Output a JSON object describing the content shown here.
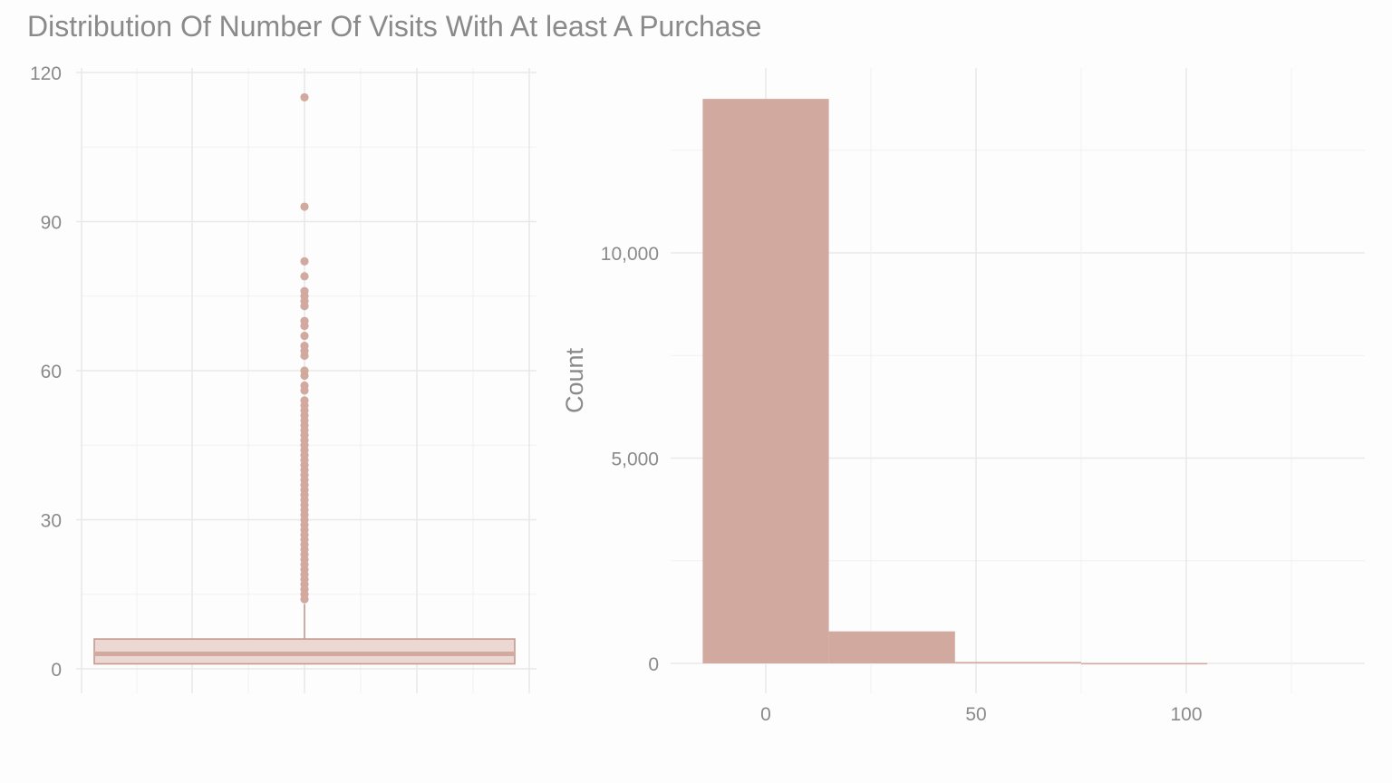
{
  "title": "Distribution Of Number Of Visits With At least A Purchase",
  "colors": {
    "fill": "#d2a99e",
    "box_fill": "#ecd8d2",
    "box_stroke": "#c79a8e",
    "text": "#8a8a8a",
    "grid_major": "#e9e9e9",
    "grid_minor": "#f1f1f1",
    "background": "#fdfdfd"
  },
  "chart_data": [
    {
      "type": "box",
      "name": "boxplot",
      "xlabel": "",
      "ylabel": "",
      "ylim": [
        -5,
        120
      ],
      "yticks": [
        0,
        30,
        60,
        90,
        120
      ],
      "ytick_labels": [
        "0",
        "30",
        "60",
        "90",
        "120"
      ],
      "grid": true,
      "stats": {
        "q1": 1,
        "median": 3,
        "q3": 6,
        "whisker_low": 1,
        "whisker_high": 13
      },
      "outliers": [
        14,
        15,
        16,
        17,
        18,
        19,
        20,
        21,
        22,
        23,
        24,
        25,
        26,
        27,
        28,
        29,
        30,
        31,
        32,
        33,
        34,
        35,
        36,
        37,
        38,
        39,
        40,
        41,
        42,
        43,
        44,
        45,
        46,
        47,
        48,
        49,
        50,
        51,
        52,
        53,
        54,
        56,
        57,
        59,
        60,
        63,
        64,
        65,
        67,
        69,
        70,
        73,
        74,
        75,
        76,
        79,
        82,
        93,
        115
      ]
    },
    {
      "type": "bar",
      "name": "histogram",
      "xlabel": "",
      "ylabel": "Count",
      "xlim": [
        -22,
        142
      ],
      "ylim": [
        0,
        14200
      ],
      "xticks": [
        0,
        50,
        100
      ],
      "xtick_labels": [
        "0",
        "50",
        "100"
      ],
      "yticks": [
        0,
        5000,
        10000
      ],
      "ytick_labels": [
        "0",
        "5,000",
        "10,000"
      ],
      "grid": true,
      "bins": [
        {
          "x0": -15,
          "x1": 15,
          "count": 13750
        },
        {
          "x0": 15,
          "x1": 45,
          "count": 780
        },
        {
          "x0": 45,
          "x1": 75,
          "count": 35
        },
        {
          "x0": 75,
          "x1": 105,
          "count": 8
        }
      ]
    }
  ]
}
